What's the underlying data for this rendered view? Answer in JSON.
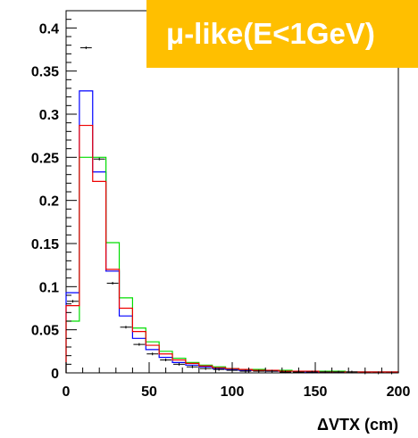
{
  "banner_text": "μ-like(E<1GeV)",
  "chart_data": {
    "type": "histogram",
    "xlabel": "ΔVTX (cm)",
    "ylabel": "",
    "xlim": [
      0,
      200
    ],
    "ylim": [
      0,
      0.42
    ],
    "x_ticks": [
      0,
      50,
      100,
      150,
      200
    ],
    "y_ticks": [
      0,
      0.05,
      0.1,
      0.15,
      0.2,
      0.25,
      0.3,
      0.35,
      0.4
    ],
    "y_tick_labels": [
      "0",
      "0.05",
      "0.1",
      "0.15",
      "0.2",
      "0.25",
      "0.3",
      "0.35",
      "0.4"
    ],
    "bin_width": 8,
    "bin_edges_start": 0,
    "series": [
      {
        "style": "step",
        "color": "#0000ff",
        "values": [
          0.093,
          0.327,
          0.233,
          0.118,
          0.066,
          0.04,
          0.027,
          0.018,
          0.012,
          0.009,
          0.007,
          0.005,
          0.004,
          0.003,
          0.003,
          0.002,
          0.002,
          0.002,
          0.001,
          0.001,
          0.001,
          0.001,
          0.001,
          0.001,
          0.001
        ]
      },
      {
        "style": "step",
        "color": "#00dd00",
        "values": [
          0.06,
          0.25,
          0.25,
          0.151,
          0.087,
          0.052,
          0.036,
          0.025,
          0.017,
          0.012,
          0.009,
          0.007,
          0.005,
          0.004,
          0.004,
          0.003,
          0.003,
          0.002,
          0.002,
          0.002,
          0.002,
          0.001,
          0.001,
          0.001,
          0.001
        ]
      },
      {
        "style": "step",
        "color": "#ee0000",
        "values": [
          0.078,
          0.287,
          0.222,
          0.12,
          0.075,
          0.048,
          0.032,
          0.022,
          0.015,
          0.011,
          0.008,
          0.006,
          0.005,
          0.004,
          0.003,
          0.003,
          0.002,
          0.002,
          0.002,
          0.001,
          0.001,
          0.001,
          0.001,
          0.001,
          0.001
        ]
      },
      {
        "style": "points",
        "color": "#000000",
        "values": [
          0.083,
          0.377,
          0.248,
          0.104,
          0.053,
          0.033,
          0.022,
          0.015,
          0.01,
          0.007,
          0.005,
          0.004,
          0.003,
          0.002,
          0.002,
          0.002,
          0.001,
          0.001,
          0.001,
          0.001,
          0.001,
          0.001,
          0.0,
          0.0,
          0.0
        ]
      }
    ]
  }
}
